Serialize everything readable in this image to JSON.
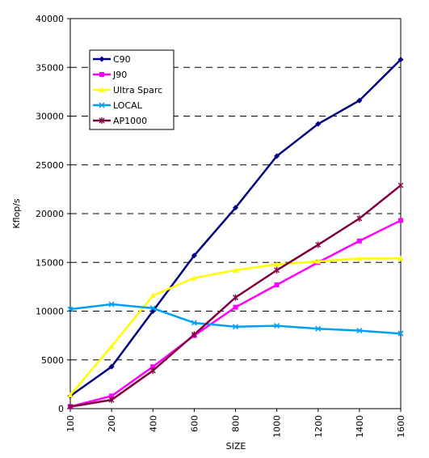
{
  "chart_data": {
    "type": "line",
    "title": "",
    "xlabel": "SIZE",
    "ylabel": "Kflop/s",
    "x": [
      100,
      200,
      400,
      600,
      800,
      1000,
      1200,
      1400,
      1600
    ],
    "x_tick_labels": [
      "100",
      "200",
      "400",
      "600",
      "800",
      "1000",
      "1200",
      "1400",
      "1600"
    ],
    "ylim": [
      0,
      40000
    ],
    "y_ticks": [
      0,
      5000,
      10000,
      15000,
      20000,
      25000,
      30000,
      35000,
      40000
    ],
    "y_tick_labels": [
      "0",
      "5000",
      "10000",
      "15000",
      "20000",
      "25000",
      "30000",
      "35000",
      "40000"
    ],
    "grid": "horizontal dashed",
    "legend_position": "top-left",
    "series": [
      {
        "name": "C90",
        "color": "#000080",
        "marker": "diamond",
        "values": [
          1300,
          4300,
          10000,
          15700,
          20600,
          25900,
          29200,
          31600,
          35800
        ]
      },
      {
        "name": "J90",
        "color": "#ff00ff",
        "marker": "square",
        "values": [
          200,
          1300,
          4300,
          7500,
          10400,
          12700,
          15000,
          17200,
          19300
        ]
      },
      {
        "name": "Ultra Sparc",
        "color": "#ffff00",
        "marker": "triangle",
        "values": [
          1400,
          6400,
          11600,
          13400,
          14200,
          14800,
          15100,
          15400,
          15400
        ]
      },
      {
        "name": "LOCAL",
        "color": "#00a0f0",
        "marker": "x",
        "values": [
          10200,
          10700,
          10300,
          8800,
          8400,
          8500,
          8200,
          8000,
          7700
        ]
      },
      {
        "name": "AP1000",
        "color": "#800040",
        "marker": "star",
        "values": [
          200,
          900,
          3900,
          7600,
          11400,
          14200,
          16800,
          19500,
          22900
        ]
      }
    ]
  }
}
